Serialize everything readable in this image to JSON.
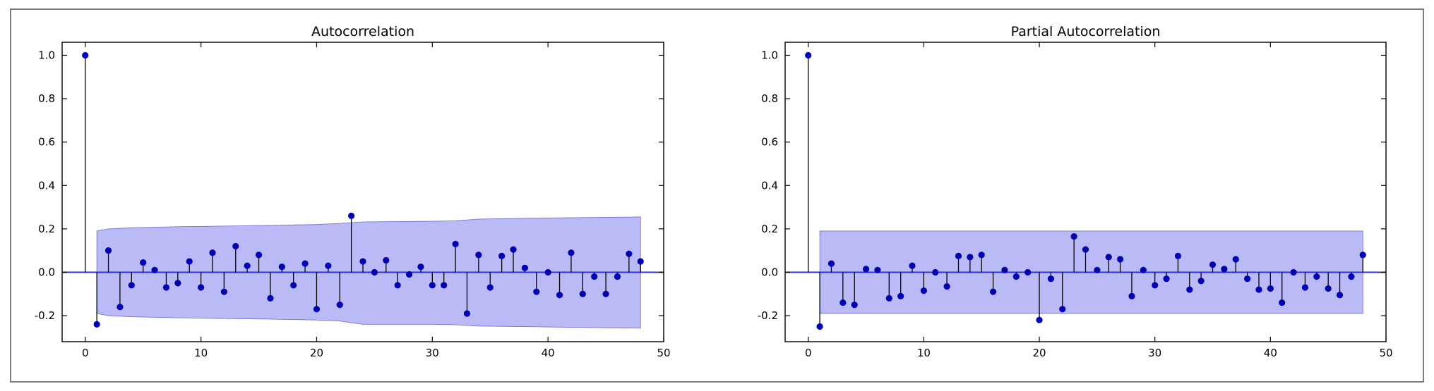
{
  "chart_data": [
    {
      "type": "scatter",
      "title": "Autocorrelation",
      "xlabel": "",
      "ylabel": "",
      "xlim": [
        -2,
        50
      ],
      "ylim": [
        -0.32,
        1.06
      ],
      "xticks": [
        0,
        10,
        20,
        30,
        40,
        50
      ],
      "yticks": [
        -0.2,
        0.0,
        0.2,
        0.4,
        0.6,
        0.8,
        1.0
      ],
      "grid": false,
      "stems": true,
      "x": [
        0,
        1,
        2,
        3,
        4,
        5,
        6,
        7,
        8,
        9,
        10,
        11,
        12,
        13,
        14,
        15,
        16,
        17,
        18,
        19,
        20,
        21,
        22,
        23,
        24,
        25,
        26,
        27,
        28,
        29,
        30,
        31,
        32,
        33,
        34,
        35,
        36,
        37,
        38,
        39,
        40,
        41,
        42,
        43,
        44,
        45,
        46,
        47,
        48
      ],
      "values": [
        1.0,
        -0.24,
        0.1,
        -0.16,
        -0.06,
        0.045,
        0.01,
        -0.07,
        -0.05,
        0.05,
        -0.07,
        0.09,
        -0.09,
        0.12,
        0.03,
        0.08,
        -0.12,
        0.025,
        -0.06,
        0.04,
        -0.17,
        0.03,
        -0.15,
        0.26,
        0.05,
        0.0,
        0.055,
        -0.06,
        -0.01,
        0.025,
        -0.06,
        -0.06,
        0.13,
        -0.19,
        0.08,
        -0.07,
        0.075,
        0.105,
        0.02,
        -0.09,
        0.0,
        -0.105,
        0.09,
        -0.1,
        -0.02,
        -0.1,
        -0.02,
        0.085,
        0.05
      ],
      "confidence_band": {
        "x": [
          1,
          2,
          4,
          8,
          12,
          16,
          20,
          22,
          24,
          30,
          32,
          34,
          40,
          48
        ],
        "upper": [
          0.19,
          0.2,
          0.205,
          0.21,
          0.213,
          0.216,
          0.22,
          0.225,
          0.232,
          0.235,
          0.237,
          0.245,
          0.25,
          0.255
        ],
        "lower": [
          -0.19,
          -0.2,
          -0.205,
          -0.21,
          -0.213,
          -0.216,
          -0.22,
          -0.225,
          -0.24,
          -0.24,
          -0.242,
          -0.248,
          -0.252,
          -0.258
        ]
      },
      "colors": {
        "marker": "#0000b3",
        "band": "#8c8cf0",
        "zero_line": "#2f2fd8",
        "stem": "#000000"
      }
    },
    {
      "type": "scatter",
      "title": "Partial Autocorrelation",
      "xlabel": "",
      "ylabel": "",
      "xlim": [
        -2,
        50
      ],
      "ylim": [
        -0.32,
        1.06
      ],
      "xticks": [
        0,
        10,
        20,
        30,
        40,
        50
      ],
      "yticks": [
        -0.2,
        0.0,
        0.2,
        0.4,
        0.6,
        0.8,
        1.0
      ],
      "grid": false,
      "stems": true,
      "x": [
        0,
        1,
        2,
        3,
        4,
        5,
        6,
        7,
        8,
        9,
        10,
        11,
        12,
        13,
        14,
        15,
        16,
        17,
        18,
        19,
        20,
        21,
        22,
        23,
        24,
        25,
        26,
        27,
        28,
        29,
        30,
        31,
        32,
        33,
        34,
        35,
        36,
        37,
        38,
        39,
        40,
        41,
        42,
        43,
        44,
        45,
        46,
        47,
        48
      ],
      "values": [
        1.0,
        -0.25,
        0.04,
        -0.14,
        -0.15,
        0.015,
        0.01,
        -0.12,
        -0.11,
        0.03,
        -0.085,
        0.0,
        -0.065,
        0.075,
        0.07,
        0.08,
        -0.09,
        0.01,
        -0.02,
        0.0,
        -0.22,
        -0.03,
        -0.17,
        0.165,
        0.105,
        0.01,
        0.07,
        0.06,
        -0.11,
        0.01,
        -0.06,
        -0.03,
        0.075,
        -0.08,
        -0.04,
        0.035,
        0.015,
        0.06,
        -0.03,
        -0.08,
        -0.075,
        -0.14,
        0.0,
        -0.07,
        -0.02,
        -0.075,
        -0.105,
        -0.02,
        0.08
      ],
      "confidence_band": {
        "x": [
          1,
          48
        ],
        "upper": [
          0.19,
          0.19
        ],
        "lower": [
          -0.19,
          -0.19
        ]
      },
      "colors": {
        "marker": "#0000b3",
        "band": "#8c8cf0",
        "zero_line": "#2f2fd8",
        "stem": "#000000"
      }
    }
  ]
}
